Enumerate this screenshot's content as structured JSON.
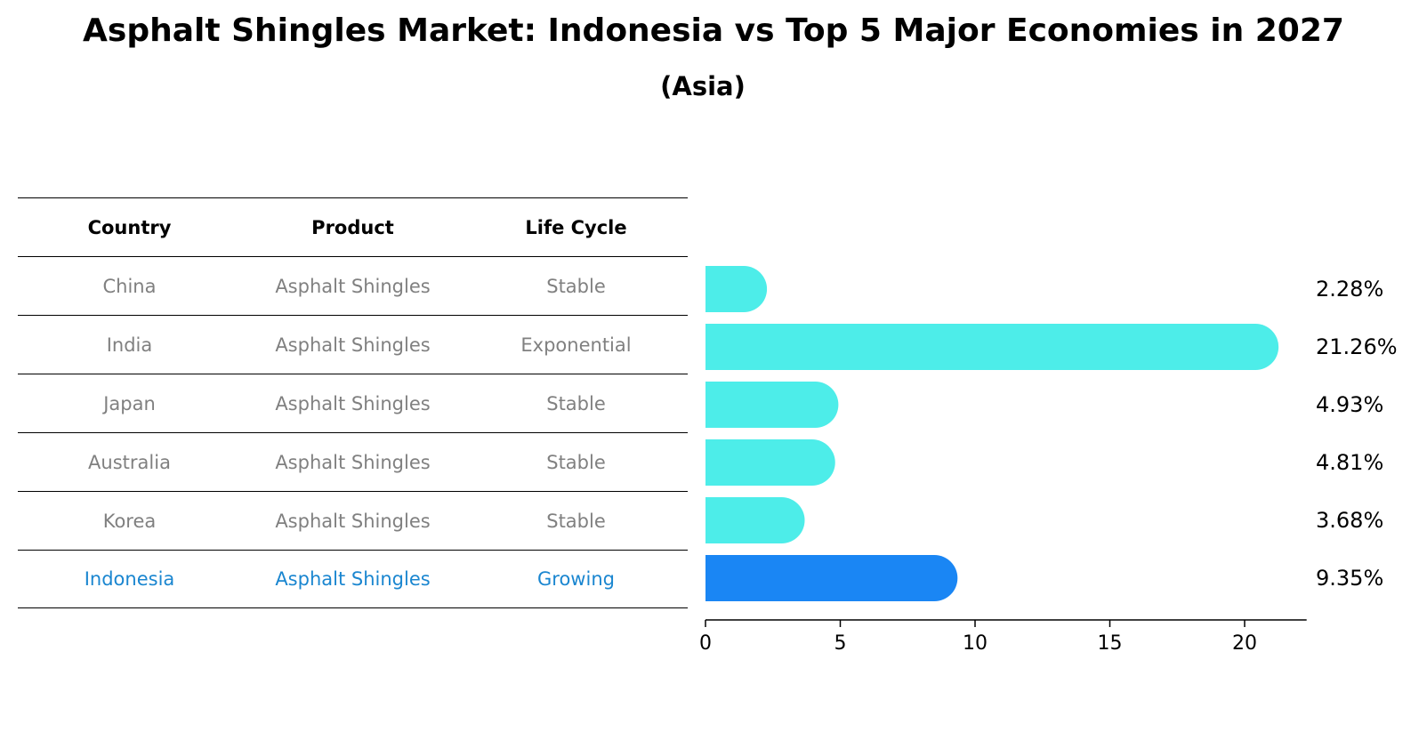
{
  "title": "Asphalt Shingles Market: Indonesia vs Top 5 Major Economies in 2027",
  "subtitle": "(Asia)",
  "table": {
    "headers": [
      "Country",
      "Product",
      "Life Cycle"
    ],
    "rows": [
      [
        "China",
        "Asphalt Shingles",
        "Stable"
      ],
      [
        "India",
        "Asphalt Shingles",
        "Exponential"
      ],
      [
        "Japan",
        "Asphalt Shingles",
        "Stable"
      ],
      [
        "Australia",
        "Asphalt Shingles",
        "Stable"
      ],
      [
        "Korea",
        "Asphalt Shingles",
        "Stable"
      ],
      [
        "Indonesia",
        "Asphalt Shingles",
        "Growing"
      ]
    ]
  },
  "colors": {
    "bar": "#4dede9",
    "highlight": "#1a86f4",
    "highlight_text": "#1a86d0",
    "muted_text": "#808080"
  },
  "chart_data": {
    "type": "bar",
    "orientation": "horizontal",
    "categories": [
      "China",
      "India",
      "Japan",
      "Australia",
      "Korea",
      "Indonesia"
    ],
    "values": [
      2.28,
      21.26,
      4.93,
      4.81,
      3.68,
      9.35
    ],
    "value_labels": [
      "2.28%",
      "21.26%",
      "4.93%",
      "4.81%",
      "3.68%",
      "9.35%"
    ],
    "highlight_category": "Indonesia",
    "xlim": [
      0,
      22.3
    ],
    "xticks": [
      0,
      5,
      10,
      15,
      20
    ],
    "grid": false
  }
}
